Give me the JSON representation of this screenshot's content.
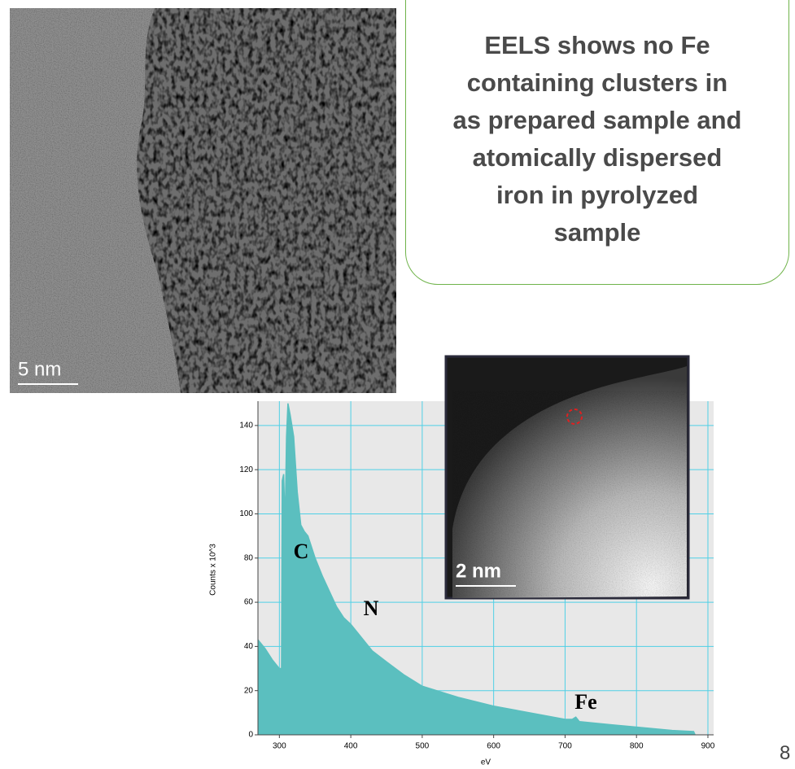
{
  "chart_data": {
    "type": "area",
    "x": [
      270,
      280,
      290,
      300,
      303,
      304,
      306,
      308,
      310,
      312,
      315,
      320,
      325,
      330,
      335,
      340,
      350,
      360,
      370,
      380,
      390,
      400,
      410,
      420,
      430,
      450,
      475,
      500,
      550,
      600,
      650,
      700,
      710,
      715,
      720,
      750,
      800,
      850,
      880,
      882
    ],
    "values": [
      43,
      39,
      34,
      30,
      30,
      115,
      118,
      95,
      135,
      150,
      145,
      135,
      110,
      95,
      92,
      90,
      80,
      72,
      65,
      58,
      53,
      50,
      46,
      42,
      38,
      33,
      27,
      22,
      17,
      13,
      10,
      7,
      7,
      8,
      6,
      5,
      3.5,
      2,
      1.5,
      0
    ],
    "color": "#5bbfbf",
    "xlabel": "eV",
    "ylabel": "Counts x 10^3",
    "xlim": [
      270,
      908
    ],
    "ylim": [
      0,
      151
    ],
    "xticks": [
      300,
      400,
      500,
      600,
      700,
      800,
      900
    ],
    "yticks": [
      0,
      20,
      40,
      60,
      80,
      100,
      120,
      140
    ],
    "grid": true,
    "grid_color": "#4fd0e6",
    "annotations": [
      "C",
      "N",
      "Fe"
    ]
  },
  "callout": [
    "EELS shows no Fe",
    "containing clusters in",
    "as prepared sample and",
    "atomically dispersed",
    "iron in pyrolyzed",
    "sample"
  ],
  "tem_scale": "5 nm",
  "stem_scale": "2 nm",
  "page_number": "8"
}
